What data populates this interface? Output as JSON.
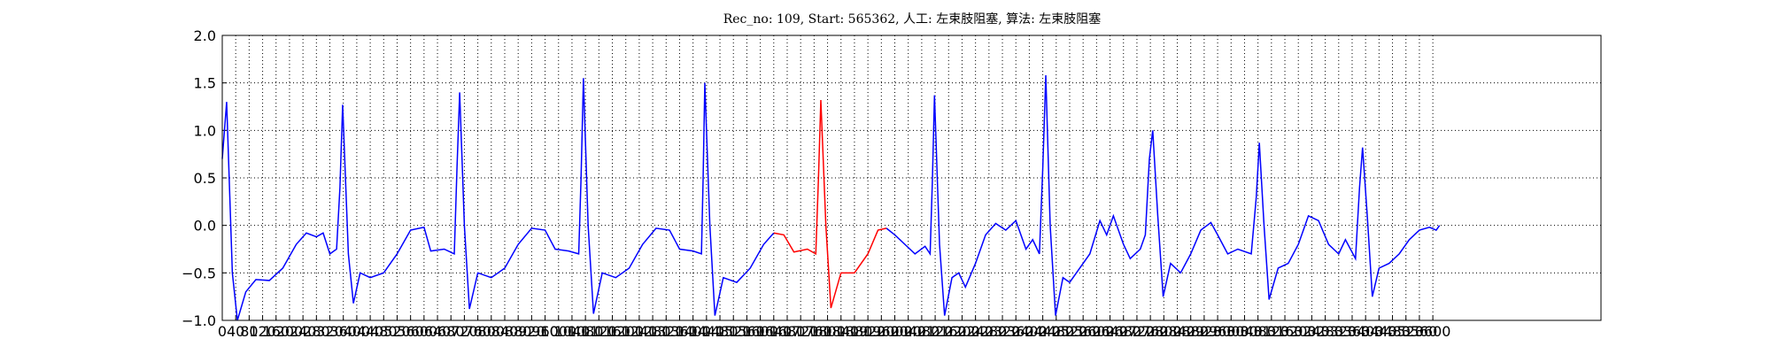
{
  "chart_data": {
    "type": "line",
    "title": "Rec_no: 109, Start: 565362, 人工: 左束肢阻塞, 算法: 左束肢阻塞",
    "xlim": [
      0,
      4100
    ],
    "ylim": [
      -1.0,
      2.0
    ],
    "xticks": [
      0,
      40,
      80,
      120,
      160,
      200,
      240,
      280,
      320,
      360,
      400,
      440,
      480,
      520,
      560,
      600,
      640,
      680,
      720,
      760,
      800,
      840,
      880,
      920,
      960,
      1000,
      1040,
      1080,
      1120,
      1160,
      1200,
      1240,
      1280,
      1320,
      1360,
      1400,
      1440,
      1480,
      1520,
      1560,
      1600,
      1640,
      1680,
      1720,
      1760,
      1800,
      1840,
      1880,
      1920,
      1960,
      2000,
      2040,
      2080,
      2120,
      2160,
      2200,
      2240,
      2280,
      2320,
      2360,
      2400,
      2440,
      2480,
      2520,
      2560,
      2600,
      2640,
      2680,
      2720,
      2760,
      2800,
      2840,
      2880,
      2920,
      2960,
      3000,
      3040,
      3080,
      3120,
      3160,
      3200,
      3240,
      3280,
      3320,
      3360,
      3400,
      3440,
      3480,
      3520,
      3560,
      3600
    ],
    "yticks": [
      {
        "value": -1.0,
        "label": "−1.0"
      },
      {
        "value": -0.5,
        "label": "−0.5"
      },
      {
        "value": 0.0,
        "label": "0.0"
      },
      {
        "value": 0.5,
        "label": "0.5"
      },
      {
        "value": 1.0,
        "label": "1.0"
      },
      {
        "value": 1.5,
        "label": "1.5"
      },
      {
        "value": 2.0,
        "label": "2.0"
      }
    ],
    "grid": true,
    "series": [
      {
        "color": "#0000ff",
        "x": [
          0,
          13,
          30,
          45,
          70,
          100,
          140,
          180,
          220,
          250,
          280,
          300,
          320,
          340,
          350,
          358,
          375,
          390,
          410,
          440,
          480,
          520,
          560,
          600,
          620,
          660,
          690,
          698,
          706,
          720,
          735,
          760,
          800,
          840,
          880,
          920,
          960,
          990,
          1030,
          1060,
          1067,
          1074,
          1088,
          1104,
          1130,
          1170,
          1210,
          1250,
          1290,
          1330,
          1360,
          1400,
          1425,
          1430,
          1435,
          1450,
          1465,
          1490,
          1530,
          1570,
          1610,
          1640,
          1700,
          1975,
          2000,
          2030,
          2060,
          2090,
          2105,
          2112,
          2118,
          2133,
          2148,
          2170,
          2190,
          2210,
          2240,
          2270,
          2300,
          2330,
          2360,
          2390,
          2410,
          2430,
          2440,
          2449,
          2462,
          2478,
          2500,
          2520,
          2550,
          2580,
          2610,
          2630,
          2650,
          2680,
          2700,
          2730,
          2745,
          2757,
          2767,
          2782,
          2798,
          2820,
          2850,
          2880,
          2910,
          2940,
          2960,
          2990,
          3020,
          3060,
          3075,
          3084,
          3098,
          3113,
          3140,
          3170,
          3200,
          3230,
          3260,
          3290,
          3320,
          3340,
          3370,
          3382,
          3391,
          3405,
          3420,
          3440,
          3470,
          3500,
          3530,
          3560,
          3590,
          3610,
          3620
        ],
        "values": [
          0.7,
          1.3,
          -0.5,
          -1.0,
          -0.7,
          -0.57,
          -0.58,
          -0.45,
          -0.2,
          -0.08,
          -0.12,
          -0.08,
          -0.3,
          -0.25,
          0.4,
          1.27,
          -0.3,
          -0.82,
          -0.5,
          -0.55,
          -0.5,
          -0.3,
          -0.05,
          -0.02,
          -0.27,
          -0.25,
          -0.3,
          0.6,
          1.4,
          0.0,
          -0.88,
          -0.5,
          -0.55,
          -0.45,
          -0.2,
          -0.03,
          -0.05,
          -0.25,
          -0.27,
          -0.3,
          0.5,
          1.55,
          0.0,
          -0.93,
          -0.5,
          -0.55,
          -0.45,
          -0.2,
          -0.03,
          -0.05,
          -0.25,
          -0.27,
          -0.3,
          0.5,
          1.5,
          0.0,
          -0.95,
          -0.55,
          -0.6,
          -0.45,
          -0.2,
          -0.08,
          null,
          -0.03,
          -0.1,
          -0.2,
          -0.3,
          -0.22,
          -0.3,
          0.5,
          1.37,
          -0.2,
          -0.95,
          -0.55,
          -0.5,
          -0.65,
          -0.4,
          -0.1,
          0.02,
          -0.05,
          0.05,
          -0.25,
          -0.15,
          -0.3,
          0.6,
          1.58,
          0.0,
          -0.95,
          -0.55,
          -0.6,
          -0.45,
          -0.3,
          0.05,
          -0.1,
          0.1,
          -0.2,
          -0.35,
          -0.25,
          -0.1,
          0.7,
          1.0,
          0.1,
          -0.75,
          -0.4,
          -0.5,
          -0.3,
          -0.05,
          0.03,
          -0.1,
          -0.3,
          -0.25,
          -0.3,
          0.3,
          0.87,
          0.0,
          -0.78,
          -0.45,
          -0.4,
          -0.2,
          0.1,
          0.05,
          -0.2,
          -0.3,
          -0.15,
          -0.35,
          0.4,
          0.82,
          0.1,
          -0.75,
          -0.45,
          -0.4,
          -0.3,
          -0.15,
          -0.05,
          -0.02,
          -0.05,
          0.0
        ]
      },
      {
        "color": "#ff0000",
        "x": [
          1640,
          1670,
          1700,
          1740,
          1765,
          1773,
          1780,
          1795,
          1810,
          1840,
          1880,
          1920,
          1950,
          1975
        ],
        "values": [
          -0.08,
          -0.1,
          -0.28,
          -0.25,
          -0.3,
          0.5,
          1.32,
          0.0,
          -0.87,
          -0.5,
          -0.5,
          -0.3,
          -0.05,
          -0.03
        ]
      }
    ]
  }
}
